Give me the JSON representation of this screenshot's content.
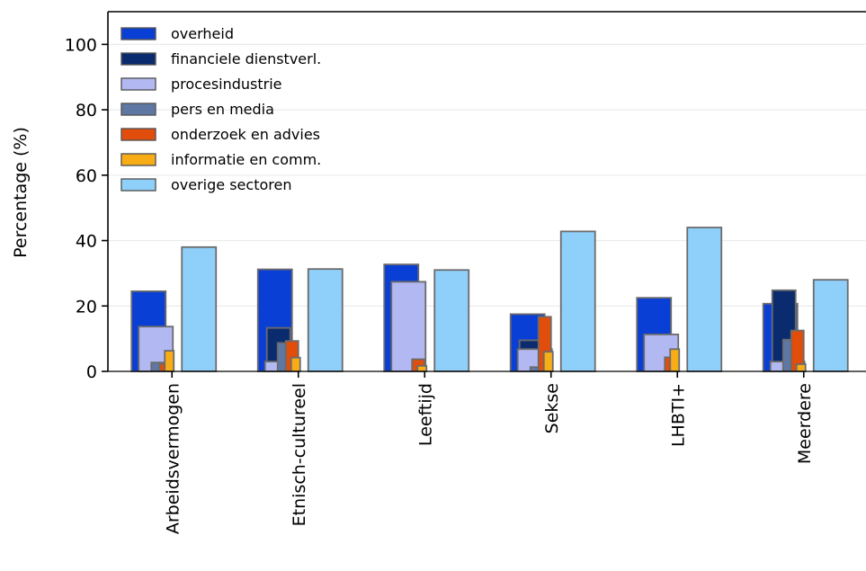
{
  "chart_data": {
    "type": "bar",
    "title": "",
    "xlabel": "",
    "ylabel": "Percentage (%)",
    "ylim": [
      0,
      110
    ],
    "yticks": [
      0,
      20,
      40,
      60,
      80,
      100
    ],
    "grid": "horizontal",
    "legend_position": "top-left",
    "categories": [
      "Arbeidsvermogen",
      "Etnisch-cultureel",
      "Leeftijd",
      "Sekse",
      "LHBTI+",
      "Meerdere"
    ],
    "series": [
      {
        "name": "overheid",
        "color": "#0a3fd6",
        "values": [
          24.5,
          31.2,
          32.7,
          17.5,
          22.5,
          20.7
        ]
      },
      {
        "name": "financiele dienstverl.",
        "color": "#0a2b6e",
        "values": [
          13.4,
          13.3,
          3.7,
          9.5,
          11.0,
          24.8
        ]
      },
      {
        "name": "procesindustrie",
        "color": "#b2b8f2",
        "values": [
          13.7,
          3.0,
          27.4,
          6.8,
          11.3,
          3.0
        ]
      },
      {
        "name": "pers en media",
        "color": "#5f77a3",
        "values": [
          2.7,
          8.7,
          0,
          1.3,
          0,
          9.7
        ]
      },
      {
        "name": "onderzoek en advies",
        "color": "#e14d0a",
        "values": [
          2.3,
          9.3,
          3.7,
          16.7,
          4.3,
          12.5
        ]
      },
      {
        "name": "informatie en comm.",
        "color": "#f8ad16",
        "values": [
          6.3,
          4.2,
          1.7,
          6.0,
          6.8,
          2.2
        ]
      },
      {
        "name": "overige sectoren",
        "color": "#8fd0fb",
        "values": [
          38.0,
          31.3,
          31.0,
          42.8,
          44.0,
          28.0
        ]
      }
    ]
  }
}
